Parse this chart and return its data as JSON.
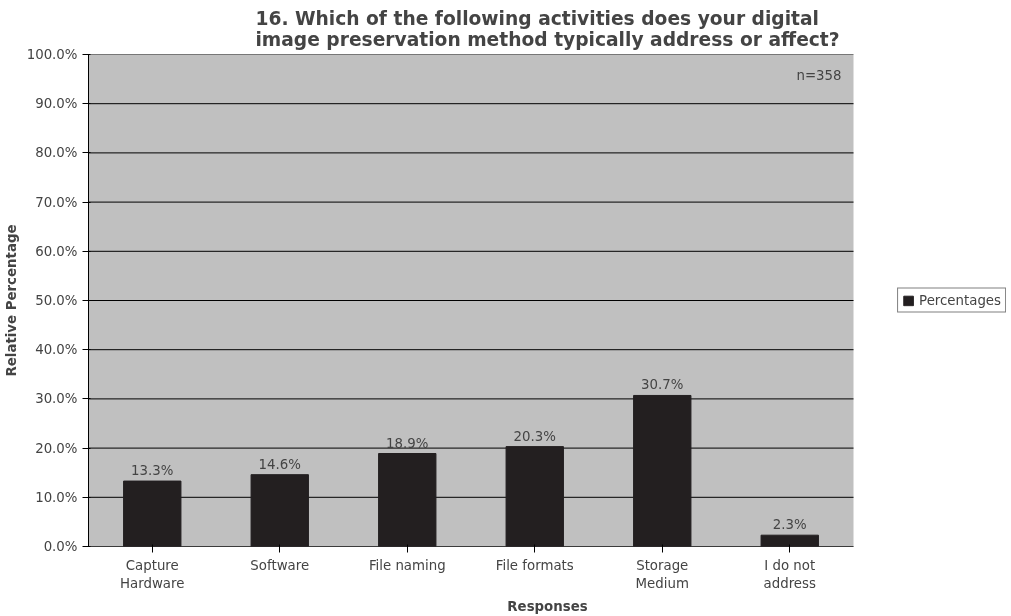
{
  "chart_data": {
    "type": "bar",
    "title": "16. Which of the following activities does your digital image preservation method typically address or affect?",
    "xlabel": "Responses",
    "ylabel": "Relative Percentage",
    "categories": [
      "Capture Hardware",
      "Software",
      "File naming",
      "File formats",
      "Storage Medium",
      "I do not address"
    ],
    "series": [
      {
        "name": "Percentages",
        "color": "#231f20",
        "values": [
          13.3,
          14.6,
          18.9,
          20.3,
          30.7,
          2.3
        ],
        "value_labels": [
          "13.3%",
          "14.6%",
          "18.9%",
          "20.3%",
          "30.7%",
          "2.3%"
        ]
      }
    ],
    "ylim": [
      0,
      100
    ],
    "yticks": [
      {
        "value": 0,
        "label": "0.0%"
      },
      {
        "value": 10,
        "label": "10.0%"
      },
      {
        "value": 20,
        "label": "20.0%"
      },
      {
        "value": 30,
        "label": "30.0%"
      },
      {
        "value": 40,
        "label": "40.0%"
      },
      {
        "value": 50,
        "label": "50.0%"
      },
      {
        "value": 60,
        "label": "60.0%"
      },
      {
        "value": 70,
        "label": "70.0%"
      },
      {
        "value": 80,
        "label": "80.0%"
      },
      {
        "value": 90,
        "label": "90.0%"
      },
      {
        "value": 100,
        "label": "100.0%"
      }
    ],
    "grid": "y",
    "legend": "right",
    "annotations": [
      "n=358"
    ]
  }
}
